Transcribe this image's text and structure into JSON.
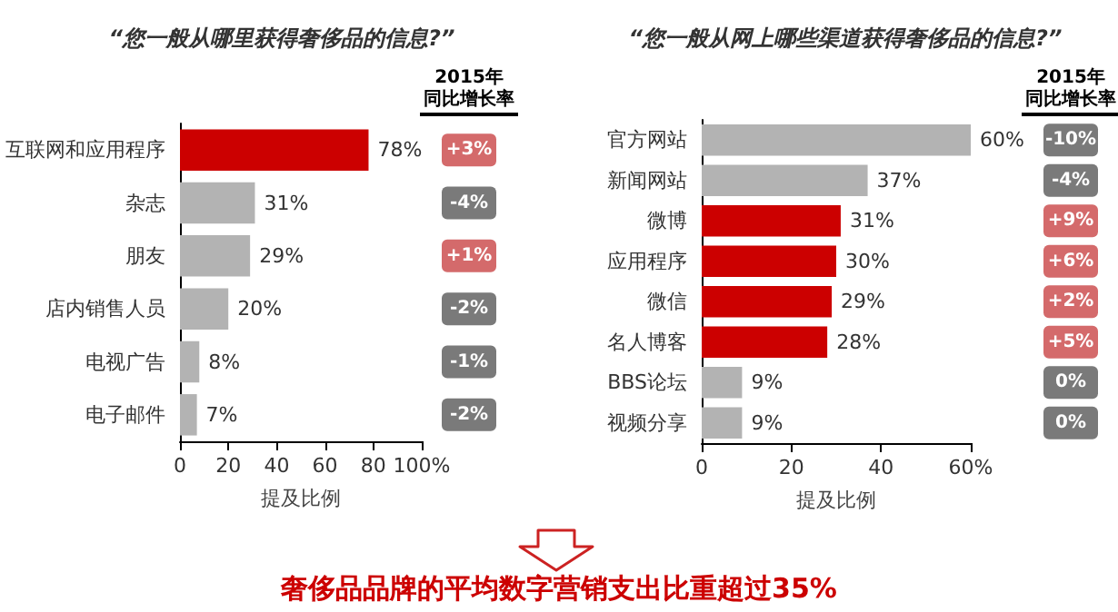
{
  "chart_data": [
    {
      "type": "bar",
      "orientation": "horizontal",
      "title": "“您一般从哪里获得奢侈品的信息?”",
      "xlabel": "提及比例",
      "categories": [
        "互联网和应用程序",
        "杂志",
        "朋友",
        "店内销售人员",
        "电视广告",
        "电子邮件"
      ],
      "values": [
        78,
        31,
        29,
        20,
        8,
        7
      ],
      "colors": [
        "#cc0000",
        "#b3b3b3",
        "#b3b3b3",
        "#b3b3b3",
        "#b3b3b3",
        "#b3b3b3"
      ],
      "value_labels": [
        "78%",
        "31%",
        "29%",
        "20%",
        "8%",
        "7%"
      ],
      "xlim": [
        0,
        100
      ],
      "xticks": [
        0,
        20,
        40,
        60,
        80,
        {
          "value": 100,
          "label": "100%"
        }
      ],
      "grid": false,
      "annotations": [
        "2015年",
        "同比增长率",
        "+3%",
        "-4%",
        "+1%",
        "-2%",
        "-1%",
        "-2%"
      ]
    },
    {
      "type": "bar",
      "orientation": "horizontal",
      "title": "“您一般从网上哪些渠道获得奢侈品的信息?”",
      "xlabel": "提及比例",
      "categories": [
        "官方网站",
        "新闻网站",
        "微博",
        "应用程序",
        "微信",
        "名人博客",
        "BBS论坛",
        "视频分享"
      ],
      "values": [
        60,
        37,
        31,
        30,
        29,
        28,
        9,
        9
      ],
      "colors": [
        "#b3b3b3",
        "#b3b3b3",
        "#cc0000",
        "#cc0000",
        "#cc0000",
        "#cc0000",
        "#b3b3b3",
        "#b3b3b3"
      ],
      "value_labels": [
        "60%",
        "37%",
        "31%",
        "30%",
        "29%",
        "28%",
        "9%",
        "9%"
      ],
      "xlim": [
        0,
        60
      ],
      "xticks": [
        0,
        20,
        40,
        {
          "value": 60,
          "label": "60%"
        }
      ],
      "grid": false,
      "annotations": [
        "2015年",
        "同比增长率",
        "-10%",
        "-4%",
        "+9%",
        "+6%",
        "+2%",
        "+5%",
        "0%",
        "0%"
      ]
    },
    {
      "type": "other",
      "annotations": [
        "奢侈品品牌的平均数字营销支出比重超过35%"
      ]
    }
  ]
}
